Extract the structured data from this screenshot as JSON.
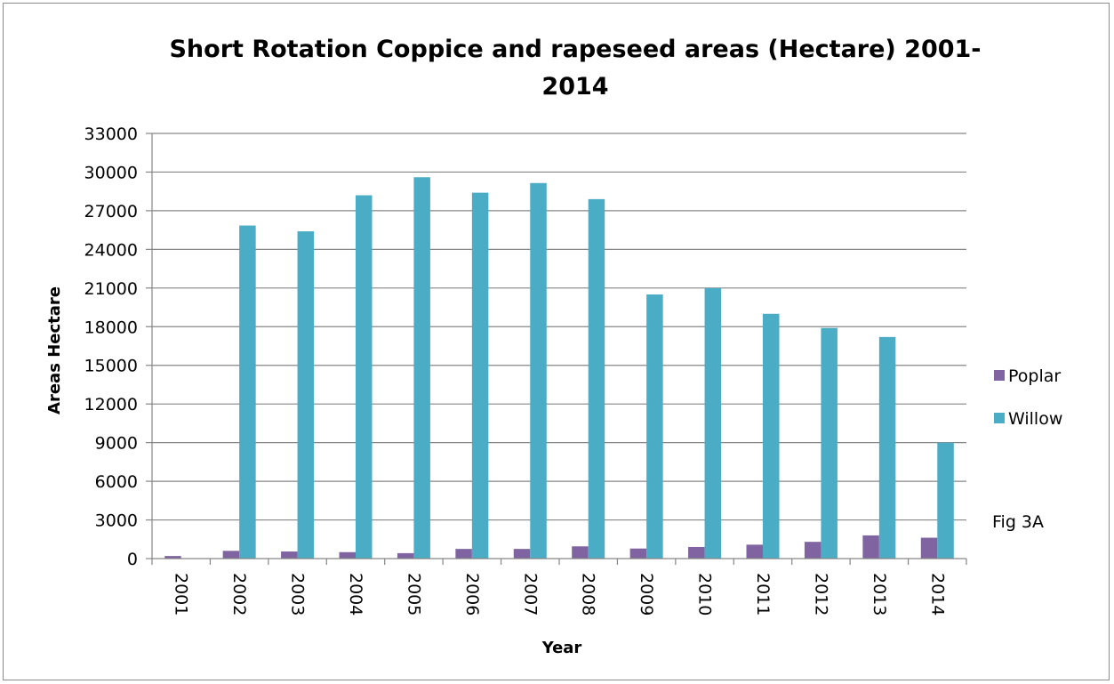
{
  "chart_data": {
    "type": "bar",
    "title_lines": [
      "Short Rotation Coppice and rapeseed areas (Hectare) 2001-",
      "2014"
    ],
    "xlabel": "Year",
    "ylabel": "Areas Hectare",
    "ylim": [
      0,
      33000
    ],
    "y_ticks": [
      0,
      3000,
      6000,
      9000,
      12000,
      15000,
      18000,
      21000,
      24000,
      27000,
      30000,
      33000
    ],
    "categories": [
      "2001",
      "2002",
      "2003",
      "2004",
      "2005",
      "2006",
      "2007",
      "2008",
      "2009",
      "2010",
      "2011",
      "2012",
      "2013",
      "2014"
    ],
    "series": [
      {
        "name": "Poplar",
        "color": "#8064a2",
        "values": [
          200,
          600,
          550,
          500,
          420,
          750,
          750,
          950,
          780,
          900,
          1080,
          1300,
          1800,
          1620
        ]
      },
      {
        "name": "Willow",
        "color": "#4bacc6",
        "values": [
          0,
          25850,
          25400,
          28200,
          29600,
          28400,
          29150,
          27900,
          20500,
          21000,
          19000,
          17900,
          17200,
          9000
        ]
      }
    ],
    "grid": true,
    "legend_position": "right",
    "annotation": "Fig 3A"
  }
}
